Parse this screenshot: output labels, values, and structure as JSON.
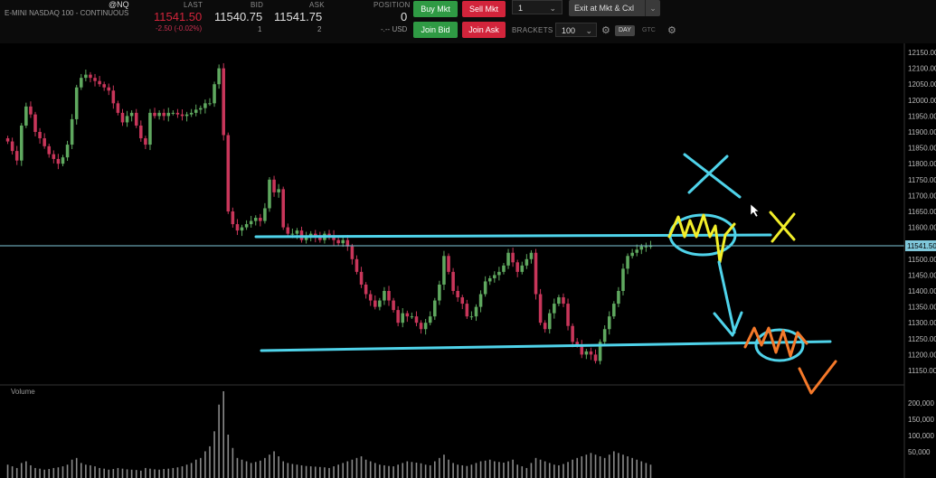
{
  "header": {
    "symbol": "@NQ",
    "name": "E-MINI NASDAQ 100 - CONTINUOUS",
    "last_label": "LAST",
    "last_value": "11541.50",
    "last_change": "-2.50 (-0.02%)",
    "bid_label": "BID",
    "bid_value": "11540.75",
    "bid_size": "1",
    "ask_label": "ASK",
    "ask_value": "11541.75",
    "ask_size": "2",
    "position_label": "POSITION",
    "position_value": "0",
    "position_currency": "-.-- USD"
  },
  "order_panel": {
    "buy_mkt": "Buy Mkt",
    "sell_mkt": "Sell Mkt",
    "join_bid": "Join Bid",
    "join_ask": "Join Ask",
    "quantity": "1",
    "exit_label": "Exit at Mkt & Cxl",
    "brackets_label": "BRACKETS",
    "brackets_value": "100",
    "day_label": "DAY",
    "gtc_label": "GTC"
  },
  "colors": {
    "up": "#5fa85f",
    "down": "#c8365a",
    "price_line": "#7fc7da",
    "annotation_cyan": "#4fd3ea",
    "annotation_yellow": "#f2ee2a",
    "annotation_orange": "#f5792a"
  },
  "price_axis": {
    "ticks": [
      "12150.00",
      "12100.00",
      "12050.00",
      "12000.00",
      "11950.00",
      "11900.00",
      "11850.00",
      "11800.00",
      "11750.00",
      "11700.00",
      "11650.00",
      "11600.00",
      "11550.00",
      "11500.00",
      "11450.00",
      "11400.00",
      "11350.00",
      "11300.00",
      "11250.00",
      "11200.00",
      "11150.00"
    ],
    "current_tag": "11541.50"
  },
  "volume_panel": {
    "title": "Volume",
    "ticks": [
      "200,000",
      "150,000",
      "100,000",
      "50,000"
    ]
  },
  "chart_data": {
    "type": "candlestick",
    "ylim": [
      11130,
      12160
    ],
    "current_price": 11541.5,
    "closes": [
      11870,
      11840,
      11810,
      11920,
      11980,
      11955,
      11900,
      11880,
      11855,
      11830,
      11815,
      11800,
      11820,
      11860,
      11940,
      12040,
      12070,
      12080,
      12070,
      12060,
      12050,
      12040,
      12030,
      11990,
      11960,
      11930,
      11950,
      11960,
      11920,
      11880,
      11860,
      11960,
      11950,
      11960,
      11950,
      11960,
      11960,
      11955,
      11950,
      11955,
      11960,
      11970,
      11975,
      11990,
      11990,
      12050,
      12100,
      11890,
      11650,
      11610,
      11590,
      11600,
      11610,
      11620,
      11630,
      11620,
      11660,
      11750,
      11710,
      11720,
      11600,
      11580,
      11580,
      11590,
      11560,
      11570,
      11580,
      11570,
      11560,
      11580,
      11575,
      11560,
      11550,
      11560,
      11540,
      11500,
      11460,
      11420,
      11390,
      11370,
      11350,
      11370,
      11400,
      11370,
      11340,
      11300,
      11330,
      11320,
      11320,
      11300,
      11280,
      11300,
      11320,
      11370,
      11420,
      11510,
      11460,
      11400,
      11380,
      11360,
      11320,
      11320,
      11350,
      11390,
      11430,
      11440,
      11450,
      11460,
      11480,
      11520,
      11490,
      11460,
      11480,
      11500,
      11520,
      11390,
      11300,
      11280,
      11330,
      11360,
      11380,
      11360,
      11290,
      11240,
      11230,
      11200,
      11210,
      11200,
      11180,
      11240,
      11280,
      11320,
      11360,
      11400,
      11470,
      11510,
      11520,
      11530,
      11540,
      11540,
      11541.5
    ],
    "volumes": [
      40,
      35,
      30,
      45,
      50,
      38,
      30,
      28,
      25,
      27,
      30,
      32,
      35,
      40,
      55,
      60,
      45,
      40,
      38,
      35,
      30,
      28,
      25,
      27,
      30,
      28,
      26,
      25,
      24,
      22,
      30,
      28,
      26,
      25,
      27,
      28,
      30,
      32,
      35,
      40,
      45,
      55,
      60,
      80,
      95,
      140,
      220,
      260,
      130,
      90,
      60,
      55,
      50,
      45,
      48,
      52,
      60,
      70,
      80,
      65,
      50,
      45,
      42,
      40,
      38,
      36,
      35,
      34,
      33,
      32,
      30,
      35,
      40,
      45,
      50,
      55,
      60,
      65,
      55,
      50,
      45,
      40,
      38,
      36,
      35,
      40,
      45,
      50,
      48,
      46,
      44,
      40,
      38,
      50,
      60,
      70,
      55,
      45,
      40,
      38,
      36,
      40,
      45,
      50,
      52,
      55,
      50,
      48,
      46,
      50,
      55,
      40,
      35,
      30,
      45,
      60,
      55,
      50,
      45,
      40,
      38,
      42,
      48,
      55,
      60,
      65,
      70,
      75,
      70,
      65,
      60,
      70,
      80,
      75,
      70,
      65,
      60,
      55,
      50,
      45,
      40
    ],
    "volume_ylim": [
      0,
      260
    ]
  }
}
